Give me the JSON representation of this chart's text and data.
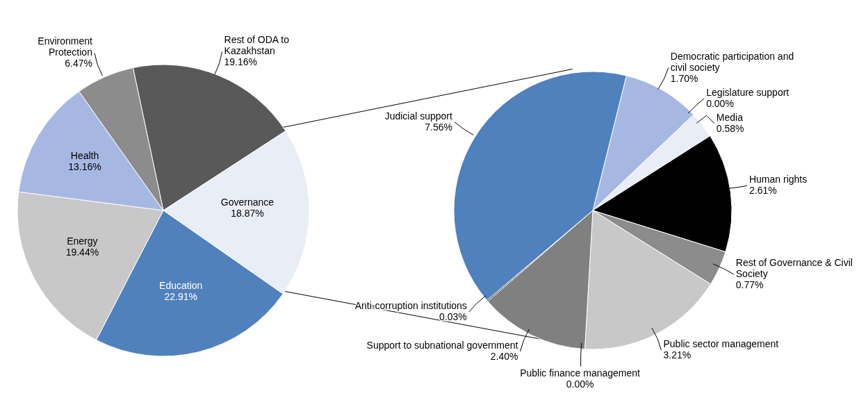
{
  "chart_data": [
    {
      "type": "pie",
      "categories": [
        "Rest of ODA to Kazakhstan",
        "Governance",
        "Education",
        "Energy",
        "Health",
        "Environment Protection"
      ],
      "values": [
        19.16,
        18.87,
        22.91,
        19.44,
        13.16,
        6.47
      ],
      "colors": [
        "#595959",
        "#e9edf6",
        "#4f81bd",
        "#c8c8c8",
        "#a6b8e2",
        "#8c8c8c"
      ],
      "value_labels": [
        "19.16%",
        "18.87%",
        "22.91%",
        "19.44%",
        "13.16%",
        "6.47%"
      ]
    },
    {
      "type": "pie",
      "categories": [
        "Democratic participation and civil society",
        "Legislature support",
        "Media",
        "Human rights",
        "Rest of Governance & Civil Society",
        "Public sector management",
        "Public finance management",
        "Support to subnational government",
        "Anti-corruption institutions",
        "Judicial support"
      ],
      "values": [
        1.7,
        0.0,
        0.58,
        2.61,
        0.77,
        3.21,
        0.0,
        2.4,
        0.03,
        7.56
      ],
      "colors": [
        "#a6b8e2",
        "#ffffff",
        "#e9edf6",
        "#000000",
        "#8c8c8c",
        "#c8c8c8",
        "#ffffff",
        "#808080",
        "#404040",
        "#4f81bd"
      ],
      "value_labels": [
        "1.70%",
        "0.00%",
        "0.58%",
        "2.61%",
        "0.77%",
        "3.21%",
        "0.00%",
        "2.40%",
        "0.03%",
        "7.56%"
      ]
    }
  ]
}
